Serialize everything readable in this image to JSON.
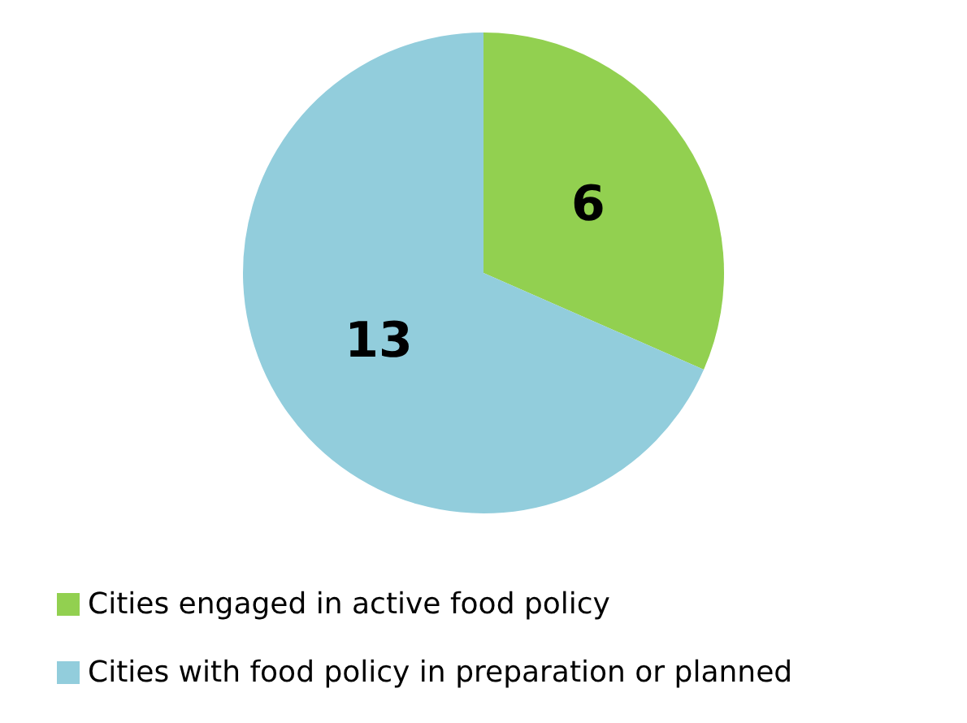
{
  "chart_data": {
    "type": "pie",
    "categories": [
      "Cities engaged in active food policy",
      "Cities with food policy in preparation or planned"
    ],
    "values": [
      6,
      13
    ],
    "colors": [
      "#92d050",
      "#92cddc"
    ],
    "data_labels": true,
    "legend": "bottom"
  }
}
